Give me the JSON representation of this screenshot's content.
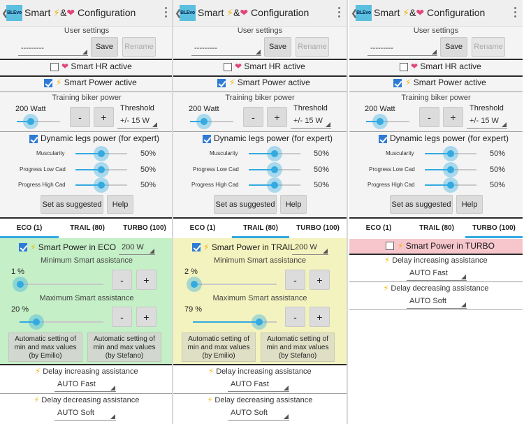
{
  "colors": {
    "accent": "#33aae0",
    "bolt": "#f0b400",
    "heart": "#e0457b",
    "eco_bg": "#c5efc7",
    "trail_bg": "#f3f3bf",
    "turbo_off_bg": "#f6c6cc"
  },
  "app": {
    "logo_text": "BLEvo",
    "title_text": "Smart ",
    "title_and": "&",
    "bolt_glyph": "⚡",
    "heart_glyph": "❤",
    "back_glyph": "❮"
  },
  "user_settings": {
    "title": "User settings",
    "profile_value": "---------",
    "save_label": "Save",
    "rename_label": "Rename"
  },
  "smart_hr": {
    "label": "Smart HR active",
    "checked": false
  },
  "smart_power": {
    "label": "Smart Power active",
    "checked": true
  },
  "training": {
    "title": "Training biker power",
    "watt_value": "200 Watt",
    "watt_level": 0.33,
    "minus_label": "-",
    "plus_label": "+",
    "threshold_label": "Threshold",
    "threshold_value": "+/- 15 W"
  },
  "dynamic": {
    "label": "Dynamic legs power (for expert)",
    "checked": true,
    "sliders": [
      {
        "label": "Muscularity",
        "value": "50%",
        "level": 0.5
      },
      {
        "label": "Progress Low Cad",
        "value": "50%",
        "level": 0.5
      },
      {
        "label": "Progress High Cad",
        "value": "50%",
        "level": 0.5
      }
    ],
    "suggest_label": "Set as suggested",
    "help_label": "Help"
  },
  "tabs": [
    {
      "label": "ECO (1)"
    },
    {
      "label": "TRAIL (80)"
    },
    {
      "label": "TURBO (100)"
    }
  ],
  "delay": {
    "inc_title": "Delay increasing assistance",
    "inc_value": "AUTO Fast",
    "dec_title": "Delay decreasing assistance",
    "dec_value": "AUTO Soft"
  },
  "eco": {
    "label": "Smart Power in ECO",
    "checked": true,
    "power_value": "200 W",
    "min_title": "Minimum Smart assistance",
    "min_value": "1 %",
    "min_level": 0.01,
    "max_title": "Maximum Smart assistance",
    "max_value": "20 %",
    "max_level": 0.2,
    "auto1": "Automatic setting of min and max values (by Emilio)",
    "auto2": "Automatic setting of min and max values (by Stefano)"
  },
  "trail": {
    "label": "Smart Power in TRAIL",
    "checked": true,
    "power_value": "200 W",
    "min_title": "Minimum Smart assistance",
    "min_value": "2 %",
    "min_level": 0.02,
    "max_title": "Maximum Smart assistance",
    "max_value": "79 %",
    "max_level": 0.79,
    "auto1": "Automatic setting of min and max values (by Emilio)",
    "auto2": "Automatic setting of min and max values (by Stefano)"
  },
  "turbo": {
    "label": "Smart Power in TURBO",
    "checked": false
  }
}
